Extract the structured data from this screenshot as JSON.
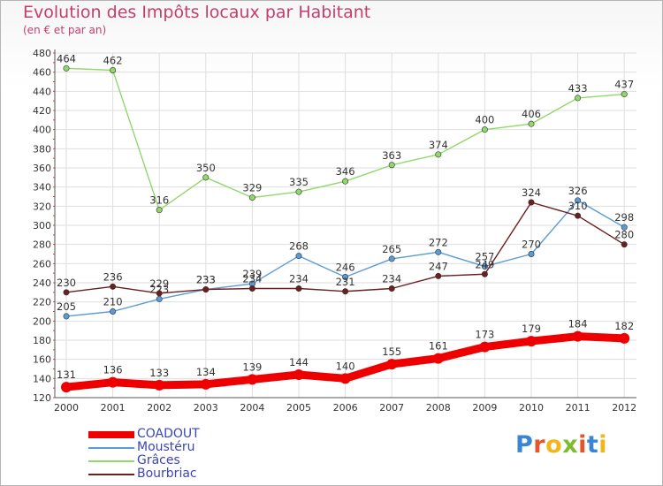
{
  "title": "Evolution des Impôts locaux par Habitant",
  "subtitle": "(en € et par an)",
  "logo": {
    "text": "Proxiti",
    "letters": [
      {
        "ch": "P",
        "color": "#3b86d4"
      },
      {
        "ch": "r",
        "color": "#e8542a"
      },
      {
        "ch": "o",
        "color": "#f2b51a"
      },
      {
        "ch": "x",
        "color": "#7bbd2f"
      },
      {
        "ch": "i",
        "color": "#e8542a"
      },
      {
        "ch": "t",
        "color": "#3b86d4"
      },
      {
        "ch": "i",
        "color": "#f2b51a"
      }
    ]
  },
  "chart_data": {
    "type": "line",
    "title": "Evolution des Impôts locaux par Habitant",
    "subtitle": "(en € et par an)",
    "x": [
      "2000",
      "2001",
      "2002",
      "2003",
      "2004",
      "2005",
      "2006",
      "2007",
      "2008",
      "2009",
      "2010",
      "2011",
      "2012"
    ],
    "ylim": [
      120,
      480
    ],
    "yticks": [
      120,
      140,
      160,
      180,
      200,
      220,
      240,
      260,
      280,
      300,
      320,
      340,
      360,
      380,
      400,
      420,
      440,
      460,
      480
    ],
    "grid": true,
    "legend_position": "bottom-left",
    "series": [
      {
        "name": "COADOUT",
        "color": "#ee0000",
        "values": [
          131,
          136,
          133,
          134,
          139,
          144,
          140,
          155,
          161,
          173,
          179,
          184,
          182
        ]
      },
      {
        "name": "Moustéru",
        "color": "#5b9bd5",
        "values": [
          205,
          210,
          223,
          233,
          239,
          268,
          246,
          265,
          272,
          257,
          270,
          326,
          298
        ]
      },
      {
        "name": "Grâces",
        "color": "#90d86a",
        "values": [
          464,
          462,
          316,
          350,
          329,
          335,
          346,
          363,
          374,
          400,
          406,
          433,
          437
        ]
      },
      {
        "name": "Bourbriac",
        "color": "#6b1f1f",
        "values": [
          230,
          236,
          229,
          233,
          234,
          234,
          231,
          234,
          247,
          249,
          324,
          310,
          280
        ]
      }
    ]
  }
}
